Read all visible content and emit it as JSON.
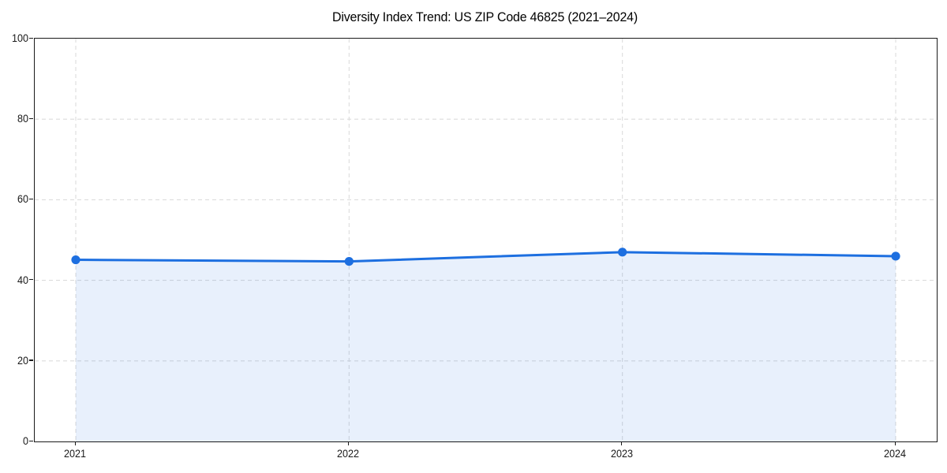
{
  "chart_data": {
    "type": "area",
    "title": "Diversity Index Trend: US ZIP Code 46825 (2021–2024)",
    "categories": [
      "2021",
      "2022",
      "2023",
      "2024"
    ],
    "series": [
      {
        "name": "Diversity Index",
        "values": [
          45.1,
          44.7,
          47.0,
          46.0
        ]
      }
    ],
    "xlabel": "",
    "ylabel": "",
    "ylim": [
      0,
      100
    ],
    "yticks": [
      0,
      20,
      40,
      60,
      80,
      100
    ],
    "grid": "dashed-both-axes",
    "legend": "none",
    "marker": "circle",
    "colors": {
      "line": "#1d6fe0",
      "fill": "#1d6fe0",
      "fill_opacity": 0.1,
      "grid": "#dcdcdc",
      "axis": "#1a1a1a",
      "tick_text": "#1a1a1a",
      "title_text": "#000000",
      "background": "#ffffff"
    }
  }
}
